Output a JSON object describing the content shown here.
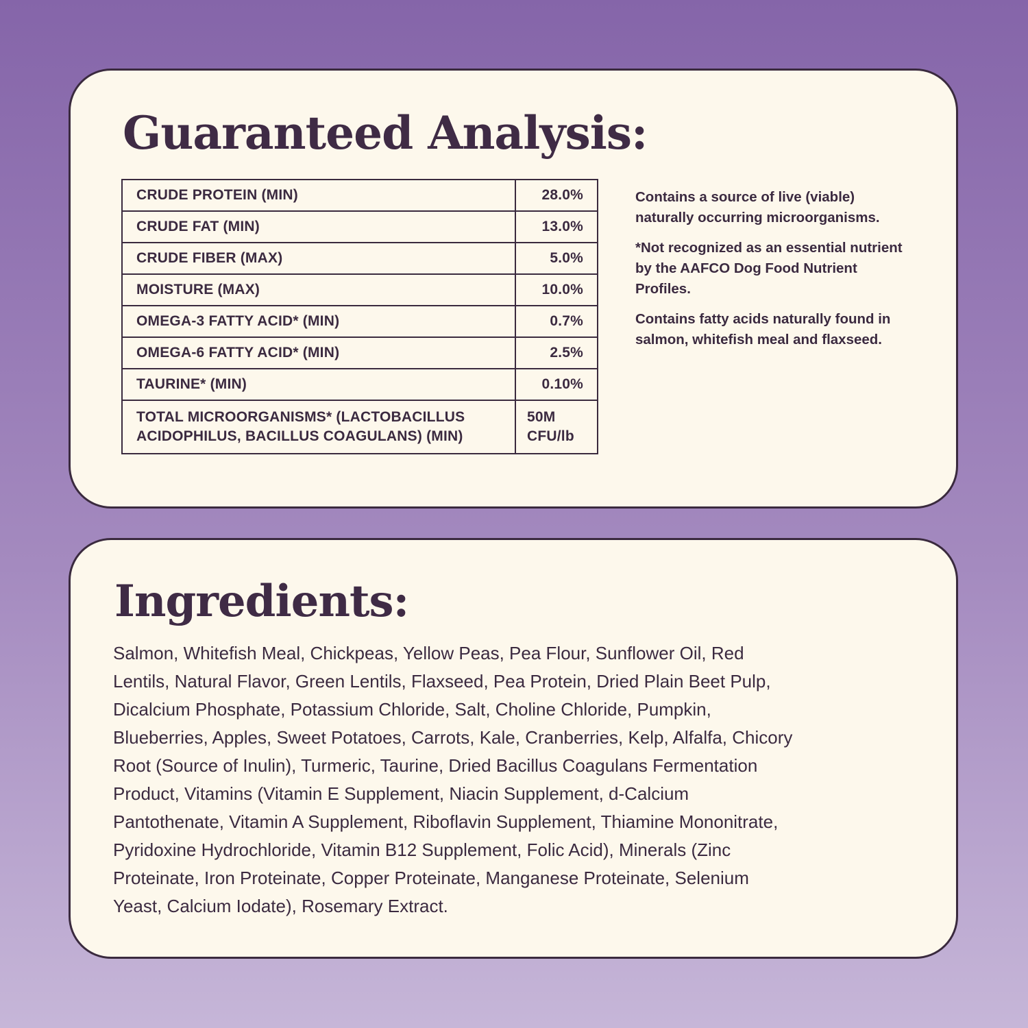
{
  "analysis": {
    "title": "Guaranteed Analysis:",
    "rows": [
      {
        "label": "CRUDE PROTEIN (MIN)",
        "value": "28.0%"
      },
      {
        "label": "CRUDE FAT (MIN)",
        "value": "13.0%"
      },
      {
        "label": "CRUDE FIBER (MAX)",
        "value": "5.0%"
      },
      {
        "label": "MOISTURE (MAX)",
        "value": "10.0%"
      },
      {
        "label": "OMEGA-3 FATTY ACID* (MIN)",
        "value": "0.7%"
      },
      {
        "label": "OMEGA-6 FATTY ACID* (MIN)",
        "value": "2.5%"
      },
      {
        "label": "TAURINE* (MIN)",
        "value": "0.10%"
      },
      {
        "label_lines": [
          "TOTAL MICROORGANISMS* (LACTOBACILLUS",
          "ACIDOPHILUS, BACILLUS COAGULANS) (MIN)"
        ],
        "value_lines": [
          "50M",
          "CFU/lb"
        ]
      }
    ],
    "notes": [
      "Contains a source of live (viable) naturally occurring microorganisms.",
      "*Not recognized as an essential nutrient by the AAFCO Dog Food Nutrient Profiles.",
      "Contains fatty acids naturally found in salmon, whitefish meal and flaxseed."
    ]
  },
  "ingredients": {
    "title": "Ingredients:",
    "lines": [
      "Salmon, Whitefish Meal, Chickpeas, Yellow Peas, Pea Flour, Sunflower Oil, Red",
      "Lentils, Natural Flavor, Green Lentils, Flaxseed, Pea Protein, Dried Plain Beet Pulp,",
      "Dicalcium Phosphate, Potassium Chloride, Salt, Choline Chloride, Pumpkin,",
      "Blueberries, Apples, Sweet Potatoes, Carrots, Kale, Cranberries, Kelp, Alfalfa, Chicory",
      "Root (Source of Inulin), Turmeric, Taurine, Dried Bacillus Coagulans Fermentation",
      "Product, Vitamins (Vitamin E Supplement, Niacin Supplement, d-Calcium",
      "Pantothenate, Vitamin A Supplement, Riboflavin Supplement, Thiamine Mononitrate,",
      "Pyridoxine Hydrochloride, Vitamin B12 Supplement, Folic Acid), Minerals (Zinc",
      "Proteinate, Iron Proteinate, Copper Proteinate, Manganese Proteinate, Selenium",
      "Yeast, Calcium Iodate), Rosemary Extract."
    ]
  }
}
